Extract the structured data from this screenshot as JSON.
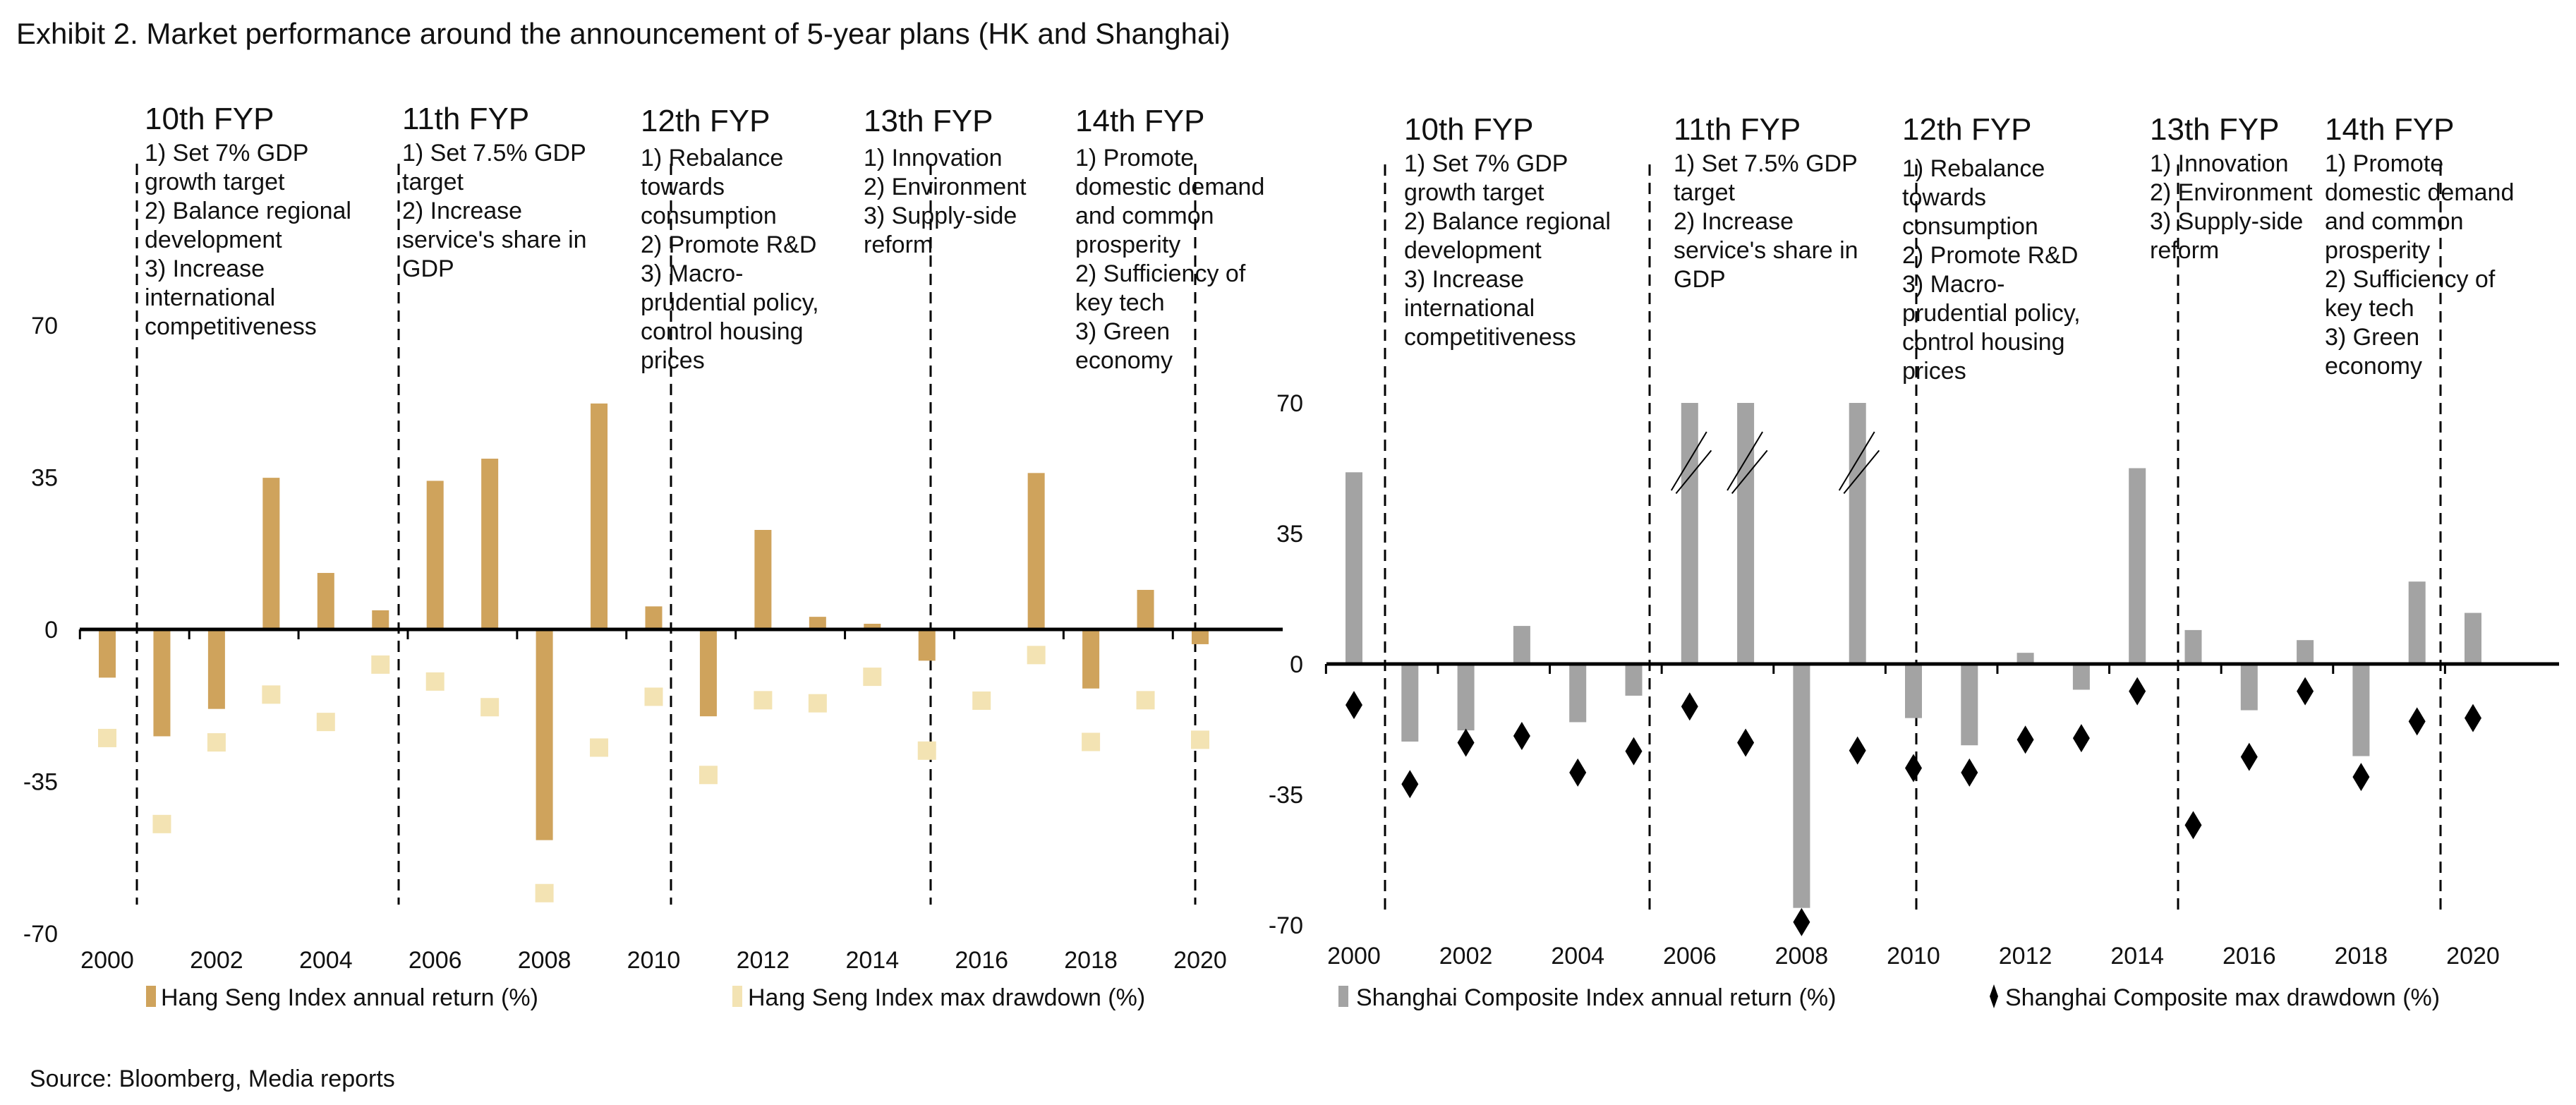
{
  "title": "Exhibit 2. Market performance around the announcement of 5-year plans (HK and Shanghai)",
  "source": "Source: Bloomberg, Media reports",
  "colors": {
    "hk_return": "#CFA35C",
    "hk_drawdown": "#F3E3B3",
    "sh_return": "#A3A3A3",
    "sh_drawdown": "#000000",
    "axis": "#000000"
  },
  "chart_data": [
    {
      "type": "bar",
      "categories": [
        "2000",
        "2001",
        "2002",
        "2003",
        "2004",
        "2005",
        "2006",
        "2007",
        "2008",
        "2009",
        "2010",
        "2011",
        "2012",
        "2013",
        "2014",
        "2015",
        "2016",
        "2017",
        "2018",
        "2019",
        "2020"
      ],
      "x_tick_labels": [
        "2000",
        "2002",
        "2004",
        "2006",
        "2008",
        "2010",
        "2012",
        "2014",
        "2016",
        "2018",
        "2020"
      ],
      "y_tick_labels": [
        "70",
        "35",
        "0",
        "-35",
        "-70"
      ],
      "ylim": [
        -70,
        70
      ],
      "grid": false,
      "legend_placement": "bottom",
      "series": [
        {
          "name": "Hang Seng Index annual return (%)",
          "mark": "bar",
          "values": [
            -11.1,
            -24.6,
            -18.3,
            34.9,
            13.0,
            4.4,
            34.2,
            39.3,
            -48.5,
            52.0,
            5.3,
            -20.0,
            22.9,
            2.9,
            1.3,
            -7.2,
            0.4,
            36.0,
            -13.6,
            9.1,
            -3.4
          ]
        },
        {
          "name": "Hang Seng Index max drawdown (%)",
          "mark": "square",
          "values": [
            -25.0,
            -44.8,
            -26.0,
            -15.0,
            -21.3,
            -8.1,
            -12.0,
            -17.9,
            -60.7,
            -27.2,
            -15.5,
            -33.5,
            -16.3,
            -17.0,
            -10.9,
            -27.9,
            -16.4,
            -5.9,
            -25.9,
            -16.3,
            -25.4
          ]
        }
      ],
      "plan_markers": [
        {
          "heading": "10th FYP",
          "lines": [
            "1) Set 7% GDP",
            "growth target",
            "2) Balance regional",
            "development",
            "3) Increase",
            "international",
            "competitiveness"
          ]
        },
        {
          "heading": "11th FYP",
          "lines": [
            "1) Set 7.5% GDP",
            "target",
            "2)  Increase",
            "service's share in",
            "GDP"
          ]
        },
        {
          "heading": "12th FYP",
          "lines": [
            "1) Rebalance",
            "towards",
            "consumption",
            "2)  Promote R&D",
            "3) Macro-",
            "prudential policy,",
            "control housing",
            "prices"
          ]
        },
        {
          "heading": "13th FYP",
          "lines": [
            "1) Innovation",
            "2) Environment",
            "3) Supply-side",
            "reform"
          ]
        },
        {
          "heading": "14th FYP",
          "lines": [
            "1) Promote",
            "domestic demand",
            "and common",
            "prosperity",
            "2) Sufficiency of",
            "key tech",
            "3) Green",
            "economy"
          ]
        }
      ]
    },
    {
      "type": "bar",
      "categories": [
        "2000",
        "2001",
        "2002",
        "2003",
        "2004",
        "2005",
        "2006",
        "2007",
        "2008",
        "2009",
        "2010",
        "2011",
        "2012",
        "2013",
        "2014",
        "2015",
        "2016",
        "2017",
        "2018",
        "2019",
        "2020"
      ],
      "x_tick_labels": [
        "2000",
        "2002",
        "2004",
        "2006",
        "2008",
        "2010",
        "2012",
        "2014",
        "2016",
        "2018",
        "2020"
      ],
      "y_tick_labels": [
        "70",
        "35",
        "0",
        "-35",
        "-70"
      ],
      "ylim": [
        -70,
        70
      ],
      "grid": false,
      "legend_placement": "bottom",
      "axis_break_bars": [
        "2006",
        "2007",
        "2009"
      ],
      "series": [
        {
          "name": "Shanghai Composite Index annual return (%)",
          "mark": "bar",
          "values": [
            51.4,
            -20.8,
            -17.8,
            10.2,
            -15.6,
            -8.5,
            70,
            70,
            -65.4,
            70,
            -14.5,
            -21.8,
            3.0,
            -6.9,
            52.5,
            9.1,
            -12.4,
            6.4,
            -24.7,
            22.1,
            13.7
          ]
        },
        {
          "name": "Shanghai Composite max drawdown (%)",
          "mark": "diamond",
          "values": [
            -11.0,
            -32.2,
            -21.1,
            -19.3,
            -29.1,
            -23.4,
            -11.4,
            -21.1,
            -69.2,
            -23.2,
            -27.9,
            -29.1,
            -20.3,
            -19.9,
            -7.3,
            -43.2,
            -24.9,
            -7.3,
            -30.3,
            -15.4,
            -14.5
          ]
        }
      ],
      "plan_markers": [
        {
          "heading": "10th FYP",
          "lines": [
            "1) Set 7% GDP",
            "growth target",
            "2) Balance regional",
            "development",
            "3) Increase",
            "international",
            "competitiveness"
          ]
        },
        {
          "heading": "11th FYP",
          "lines": [
            "1) Set 7.5% GDP",
            "target",
            "2)  Increase",
            "service's share in",
            "GDP"
          ]
        },
        {
          "heading": "12th FYP",
          "lines": [
            "1) Rebalance",
            "towards",
            "consumption",
            "2)  Promote R&D",
            "3) Macro-",
            "prudential policy,",
            "control housing",
            "prices"
          ]
        },
        {
          "heading": "13th FYP",
          "lines": [
            "1) Innovation",
            "2) Environment",
            "3) Supply-side",
            "reform"
          ]
        },
        {
          "heading": "14th FYP",
          "lines": [
            "1) Promote",
            "domestic demand",
            "and common",
            "prosperity",
            "2) Sufficiency of",
            "key tech",
            "3) Green",
            "economy"
          ]
        }
      ]
    }
  ]
}
